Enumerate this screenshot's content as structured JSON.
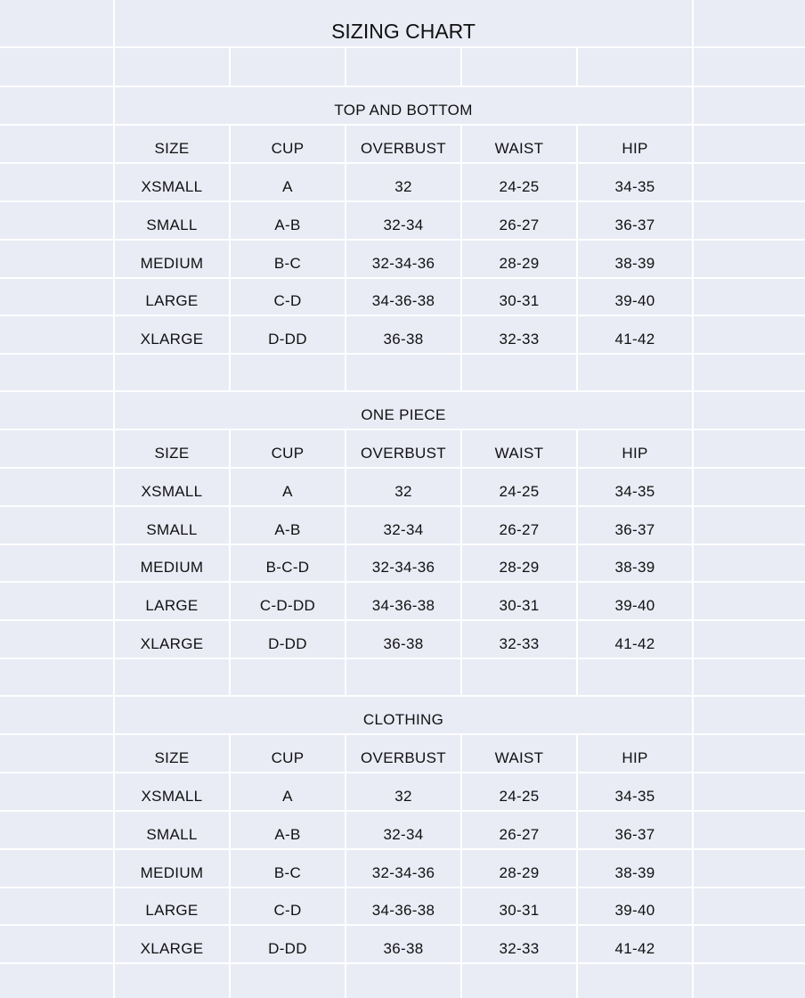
{
  "title": "SIZING CHART",
  "columns": [
    "SIZE",
    "CUP",
    "OVERBUST",
    "WAIST",
    "HIP"
  ],
  "sections": [
    {
      "name": "TOP AND BOTTOM",
      "rows": [
        [
          "XSMALL",
          "A",
          "32",
          "24-25",
          "34-35"
        ],
        [
          "SMALL",
          "A-B",
          "32-34",
          "26-27",
          "36-37"
        ],
        [
          "MEDIUM",
          "B-C",
          "32-34-36",
          "28-29",
          "38-39"
        ],
        [
          "LARGE",
          "C-D",
          "34-36-38",
          "30-31",
          "39-40"
        ],
        [
          "XLARGE",
          "D-DD",
          "36-38",
          "32-33",
          "41-42"
        ]
      ]
    },
    {
      "name": "ONE PIECE",
      "rows": [
        [
          "XSMALL",
          "A",
          "32",
          "24-25",
          "34-35"
        ],
        [
          "SMALL",
          "A-B",
          "32-34",
          "26-27",
          "36-37"
        ],
        [
          "MEDIUM",
          "B-C-D",
          "32-34-36",
          "28-29",
          "38-39"
        ],
        [
          "LARGE",
          "C-D-DD",
          "34-36-38",
          "30-31",
          "39-40"
        ],
        [
          "XLARGE",
          "D-DD",
          "36-38",
          "32-33",
          "41-42"
        ]
      ]
    },
    {
      "name": "CLOTHING",
      "rows": [
        [
          "XSMALL",
          "A",
          "32",
          "24-25",
          "34-35"
        ],
        [
          "SMALL",
          "A-B",
          "32-34",
          "26-27",
          "36-37"
        ],
        [
          "MEDIUM",
          "B-C",
          "32-34-36",
          "28-29",
          "38-39"
        ],
        [
          "LARGE",
          "C-D",
          "34-36-38",
          "30-31",
          "39-40"
        ],
        [
          "XLARGE",
          "D-DD",
          "36-38",
          "32-33",
          "41-42"
        ]
      ]
    }
  ]
}
